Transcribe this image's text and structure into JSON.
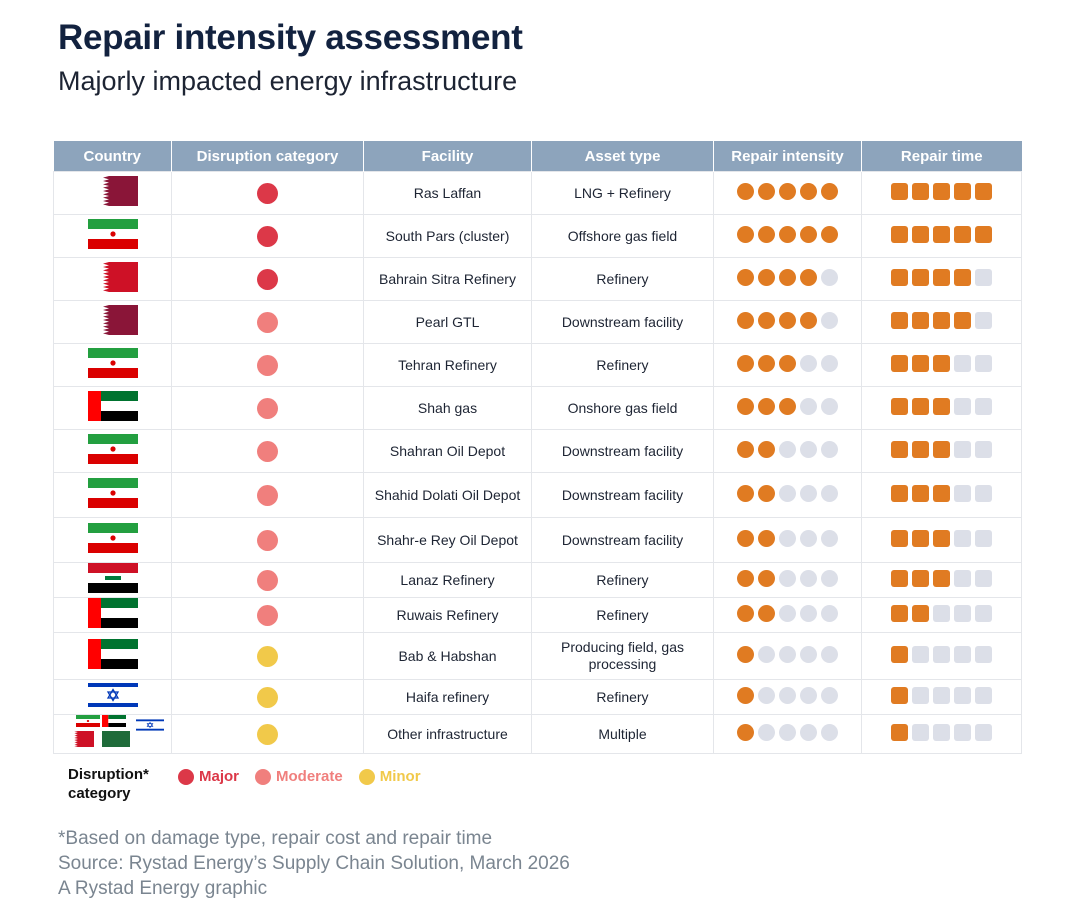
{
  "title": "Repair intensity assessment",
  "subtitle": "Majorly impacted energy infrastructure",
  "colors": {
    "header_bg": "#8da4bc",
    "major": "#dc3848",
    "moderate": "#f07f7d",
    "minor": "#f1c94a",
    "filled": "#e07b22",
    "empty": "#dcdfe8"
  },
  "chart_data": {
    "type": "table",
    "columns": [
      "Country",
      "Disruption category",
      "Facility",
      "Asset type",
      "Repair intensity",
      "Repair time"
    ],
    "max_score": 5,
    "rows": [
      {
        "flag": "qatar",
        "category": "major",
        "facility": "Ras Laffan",
        "asset": "LNG + Refinery",
        "intensity": 5,
        "time": 5
      },
      {
        "flag": "iran",
        "category": "major",
        "facility": "South Pars (cluster)",
        "asset": "Offshore gas field",
        "intensity": 5,
        "time": 5
      },
      {
        "flag": "bahrain",
        "category": "major",
        "facility": "Bahrain Sitra Refinery",
        "asset": "Refinery",
        "intensity": 4,
        "time": 4
      },
      {
        "flag": "qatar",
        "category": "moderate",
        "facility": "Pearl GTL",
        "asset": "Downstream facility",
        "intensity": 4,
        "time": 4
      },
      {
        "flag": "iran",
        "category": "moderate",
        "facility": "Tehran Refinery",
        "asset": "Refinery",
        "intensity": 3,
        "time": 3
      },
      {
        "flag": "uae",
        "category": "moderate",
        "facility": "Shah gas",
        "asset": "Onshore gas field",
        "intensity": 3,
        "time": 3
      },
      {
        "flag": "iran",
        "category": "moderate",
        "facility": "Shahran Oil Depot",
        "asset": "Downstream facility",
        "intensity": 2,
        "time": 3
      },
      {
        "flag": "iran",
        "category": "moderate",
        "facility": "Shahid Dolati Oil Depot",
        "asset": "Downstream facility",
        "intensity": 2,
        "time": 3
      },
      {
        "flag": "iran",
        "category": "moderate",
        "facility": "Shahr-e Rey Oil Depot",
        "asset": "Downstream facility",
        "intensity": 2,
        "time": 3
      },
      {
        "flag": "iraq",
        "category": "moderate",
        "facility": "Lanaz Refinery",
        "asset": "Refinery",
        "intensity": 2,
        "time": 3
      },
      {
        "flag": "uae",
        "category": "moderate",
        "facility": "Ruwais Refinery",
        "asset": "Refinery",
        "intensity": 2,
        "time": 2
      },
      {
        "flag": "uae",
        "category": "minor",
        "facility": "Bab & Habshan",
        "asset": "Producing field, gas processing",
        "intensity": 1,
        "time": 1
      },
      {
        "flag": "israel",
        "category": "minor",
        "facility": "Haifa refinery",
        "asset": "Refinery",
        "intensity": 1,
        "time": 1
      },
      {
        "flag": "multi",
        "category": "minor",
        "facility": "Other infrastructure",
        "asset": "Multiple",
        "intensity": 1,
        "time": 1
      }
    ]
  },
  "legend": {
    "title": "Disruption* category",
    "items": [
      {
        "key": "major",
        "label": "Major"
      },
      {
        "key": "moderate",
        "label": "Moderate"
      },
      {
        "key": "minor",
        "label": "Minor"
      }
    ]
  },
  "notes": {
    "footnote": "*Based on damage type, repair cost and repair time",
    "source": "Source: Rystad Energy’s Supply Chain Solution, March 2026",
    "credit": "A Rystad Energy graphic"
  }
}
